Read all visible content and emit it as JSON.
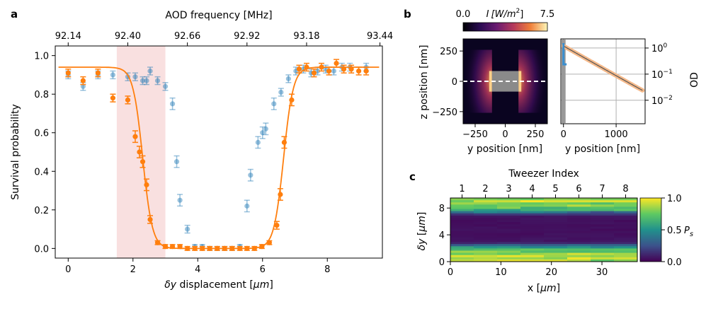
{
  "chart_data": [
    {
      "panel": "a",
      "type": "scatter",
      "panel_label": "a",
      "xlabel_prefix": "δy",
      "xlabel_rest": " displacement [",
      "xlabel_unit": "μm",
      "xlabel_close": "]",
      "ylabel": "Survival probability",
      "top_xlabel": "AOD frequency [MHz]",
      "xlim": [
        -0.4,
        9.7
      ],
      "ylim": [
        -0.05,
        1.05
      ],
      "x_ticks": [
        "0",
        "2",
        "4",
        "6",
        "8"
      ],
      "y_ticks": [
        "0.0",
        "0.2",
        "0.4",
        "0.6",
        "0.8",
        "1.0"
      ],
      "top_ticks": [
        "92.14",
        "92.40",
        "92.66",
        "92.92",
        "93.18",
        "93.44"
      ],
      "shaded_region": [
        1.5,
        3.0
      ],
      "series": [
        {
          "name": "blue",
          "color": "#1f77b4",
          "x": [
            0.0,
            0.46,
            0.92,
            1.38,
            1.84,
            2.07,
            2.3,
            2.42,
            2.53,
            2.76,
            3.0,
            3.22,
            3.35,
            3.45,
            3.68,
            3.91,
            4.14,
            4.37,
            4.6,
            4.83,
            5.06,
            5.3,
            5.52,
            5.63,
            5.86,
            6.0,
            6.1,
            6.35,
            6.57,
            6.8,
            7.03,
            7.26,
            7.5,
            7.7,
            7.95,
            8.2,
            8.45,
            8.7,
            9.2
          ],
          "y": [
            0.9,
            0.84,
            0.9,
            0.9,
            0.89,
            0.89,
            0.87,
            0.87,
            0.92,
            0.87,
            0.84,
            0.75,
            0.45,
            0.25,
            0.1,
            0.01,
            0.01,
            0.0,
            0.0,
            0.0,
            0.0,
            0.01,
            0.22,
            0.38,
            0.55,
            0.6,
            0.62,
            0.75,
            0.81,
            0.88,
            0.92,
            0.93,
            0.91,
            0.92,
            0.93,
            0.92,
            0.94,
            0.94,
            0.94
          ],
          "err": [
            0.02,
            0.02,
            0.02,
            0.02,
            0.02,
            0.02,
            0.02,
            0.02,
            0.02,
            0.02,
            0.02,
            0.03,
            0.03,
            0.03,
            0.02,
            0.01,
            0.01,
            0.01,
            0.01,
            0.01,
            0.01,
            0.01,
            0.03,
            0.03,
            0.03,
            0.03,
            0.03,
            0.03,
            0.02,
            0.02,
            0.02,
            0.02,
            0.02,
            0.02,
            0.02,
            0.02,
            0.02,
            0.02,
            0.02
          ]
        },
        {
          "name": "orange",
          "color": "#ff7f0e",
          "x": [
            0.0,
            0.46,
            0.92,
            1.38,
            1.84,
            2.07,
            2.2,
            2.3,
            2.42,
            2.53,
            2.76,
            3.0,
            3.22,
            3.45,
            3.68,
            3.91,
            4.14,
            4.37,
            4.6,
            4.83,
            5.06,
            5.3,
            5.52,
            5.75,
            5.98,
            6.21,
            6.44,
            6.55,
            6.67,
            6.9,
            7.13,
            7.36,
            7.59,
            7.82,
            8.05,
            8.28,
            8.51,
            8.74,
            8.97,
            9.2
          ],
          "y": [
            0.91,
            0.87,
            0.91,
            0.78,
            0.77,
            0.58,
            0.5,
            0.45,
            0.33,
            0.15,
            0.03,
            0.01,
            0.01,
            0.01,
            0.0,
            0.0,
            0.0,
            0.0,
            0.0,
            0.0,
            0.0,
            0.0,
            0.0,
            0.0,
            0.01,
            0.03,
            0.12,
            0.28,
            0.55,
            0.77,
            0.93,
            0.94,
            0.91,
            0.94,
            0.92,
            0.96,
            0.93,
            0.93,
            0.92,
            0.92
          ],
          "err": [
            0.02,
            0.02,
            0.02,
            0.02,
            0.02,
            0.03,
            0.03,
            0.03,
            0.03,
            0.02,
            0.01,
            0.01,
            0.01,
            0.01,
            0.01,
            0.01,
            0.01,
            0.01,
            0.01,
            0.01,
            0.01,
            0.01,
            0.01,
            0.01,
            0.01,
            0.01,
            0.02,
            0.03,
            0.03,
            0.03,
            0.02,
            0.02,
            0.02,
            0.02,
            0.02,
            0.02,
            0.02,
            0.02,
            0.02,
            0.02
          ]
        }
      ],
      "fit": {
        "color": "#ff7f0e",
        "baseline": 0.94,
        "edge_left": 2.3,
        "edge_right": 6.65,
        "width": 0.15
      }
    },
    {
      "panel": "b-left",
      "type": "heatmap",
      "panel_label": "b",
      "colorbar_label_prefix": "I",
      "colorbar_label_unit": "[W/m",
      "colorbar_label_exp": "2",
      "colorbar_label_close": "]",
      "colorbar_ticks": [
        "0.0",
        "7.5"
      ],
      "colorbar_range": [
        0.0,
        7.5
      ],
      "xlabel": "y position [nm]",
      "ylabel": "z position [nm]",
      "xlim": [
        -350,
        350
      ],
      "ylim": [
        -350,
        350
      ],
      "x_ticks": [
        "−250",
        "0",
        "250"
      ],
      "y_ticks": [
        "250",
        "0",
        "−250"
      ],
      "block_half_width_nm": 110,
      "block_half_height_nm": 85
    },
    {
      "panel": "b-right",
      "type": "line",
      "xlabel": "y position [nm]",
      "ylabel": "OD",
      "x_ticks": [
        "0",
        "1000"
      ],
      "xlim": [
        -50,
        1550
      ],
      "y_log_range": [
        -2.9,
        0.35
      ],
      "y_ticks": [
        {
          "base": "10",
          "exp": "0"
        },
        {
          "base": "10",
          "exp": "−1"
        },
        {
          "base": "10",
          "exp": "−2"
        }
      ],
      "decay_length_nm": 380,
      "od_at_zero": 1.2
    },
    {
      "panel": "c",
      "type": "heatmap",
      "panel_label": "c",
      "top_xlabel": "Tweezer Index",
      "top_ticks": [
        "1",
        "2",
        "3",
        "4",
        "5",
        "6",
        "7",
        "8"
      ],
      "xlabel_prefix": "x [",
      "xlabel_unit": "μm",
      "xlabel_close": "]",
      "ylabel_prefix": "δy",
      "ylabel_rest": " [",
      "ylabel_unit": "μm",
      "ylabel_close": "]",
      "x_ticks": [
        "0",
        "10",
        "20",
        "30"
      ],
      "y_ticks": [
        "0",
        "4",
        "8"
      ],
      "xlim": [
        0,
        37
      ],
      "ylim": [
        0,
        9.5
      ],
      "colorbar_ticks": [
        "1.0",
        "0.5",
        "0.0"
      ],
      "colorbar_label_prefix": "P",
      "colorbar_label_sub": "s",
      "n_columns": 8,
      "row_profile": [
        0.85,
        0.88,
        0.8,
        0.78,
        0.72,
        0.65,
        0.35,
        0.15,
        0.05,
        0.04,
        0.03,
        0.03,
        0.03,
        0.03,
        0.03,
        0.03,
        0.03,
        0.03,
        0.04,
        0.05,
        0.1,
        0.3,
        0.55,
        0.7,
        0.78,
        0.85,
        0.88,
        0.9,
        0.85
      ]
    }
  ]
}
